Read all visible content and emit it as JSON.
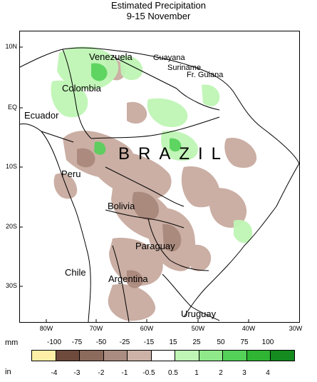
{
  "title": {
    "line1": "Estimated Precipitation",
    "line2": "9-15 November"
  },
  "lat_labels": [
    "10N",
    "EQ",
    "10S",
    "20S",
    "30S"
  ],
  "lon_labels": [
    "80W",
    "70W",
    "60W",
    "50W",
    "40W",
    "30W"
  ],
  "countries": {
    "venezuela": "Venezuela",
    "guayana": "Guayana",
    "suriname": "Suriname",
    "fr_guiana": "Fr. Guiana",
    "colombia": "Colombia",
    "ecuador": "Ecuador",
    "brazil": "BRAZIL",
    "peru": "Peru",
    "bolivia": "Bolivia",
    "paraguay": "Paraguay",
    "chile": "Chile",
    "argentina": "Argentina",
    "uruguay": "Uruguay"
  },
  "legend": {
    "mm_label": "mm",
    "in_label": "in",
    "mm_values": [
      "-100",
      "-75",
      "-50",
      "-25",
      "-15",
      "15",
      "25",
      "50",
      "75",
      "100"
    ],
    "in_values": [
      "-4",
      "-3",
      "-2",
      "-1",
      "-0.5",
      "0.5",
      "1",
      "2",
      "3",
      "4"
    ],
    "colors": [
      "#fdf0a6",
      "#6e4a3d",
      "#8c6a5c",
      "#ab8c80",
      "#cdb2a7",
      "#ffffff",
      "#bff5b5",
      "#8fe88a",
      "#54d158",
      "#2fb433",
      "#148a1f"
    ]
  }
}
